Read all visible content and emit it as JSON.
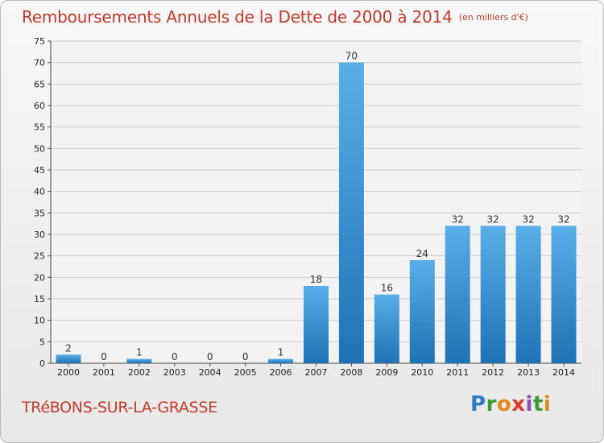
{
  "header": {
    "title": "Remboursements Annuels de la Dette de 2000 à 2014",
    "unit": "(en milliers d'€)"
  },
  "footer": {
    "commune": "TRéBONS-SUR-LA-GRASSE",
    "logo_letters": [
      "P",
      "r",
      "o",
      "x",
      "i",
      "t",
      "i"
    ]
  },
  "colors": {
    "title": "#c0392b",
    "bar_light": "#5aaee8",
    "bar_dark": "#1f72b4",
    "grid": "#cccccc"
  },
  "chart_data": {
    "type": "bar",
    "categories": [
      "2000",
      "2001",
      "2002",
      "2003",
      "2004",
      "2005",
      "2006",
      "2007",
      "2008",
      "2009",
      "2010",
      "2011",
      "2012",
      "2013",
      "2014"
    ],
    "values": [
      2,
      0,
      1,
      0,
      0,
      0,
      1,
      18,
      70,
      16,
      24,
      32,
      32,
      32,
      32
    ],
    "ylim": [
      0,
      75
    ],
    "yticks": [
      0,
      5,
      10,
      15,
      20,
      25,
      30,
      35,
      40,
      45,
      50,
      55,
      60,
      65,
      70,
      75
    ],
    "grid": true,
    "title": "Remboursements Annuels de la Dette de 2000 à 2014"
  }
}
